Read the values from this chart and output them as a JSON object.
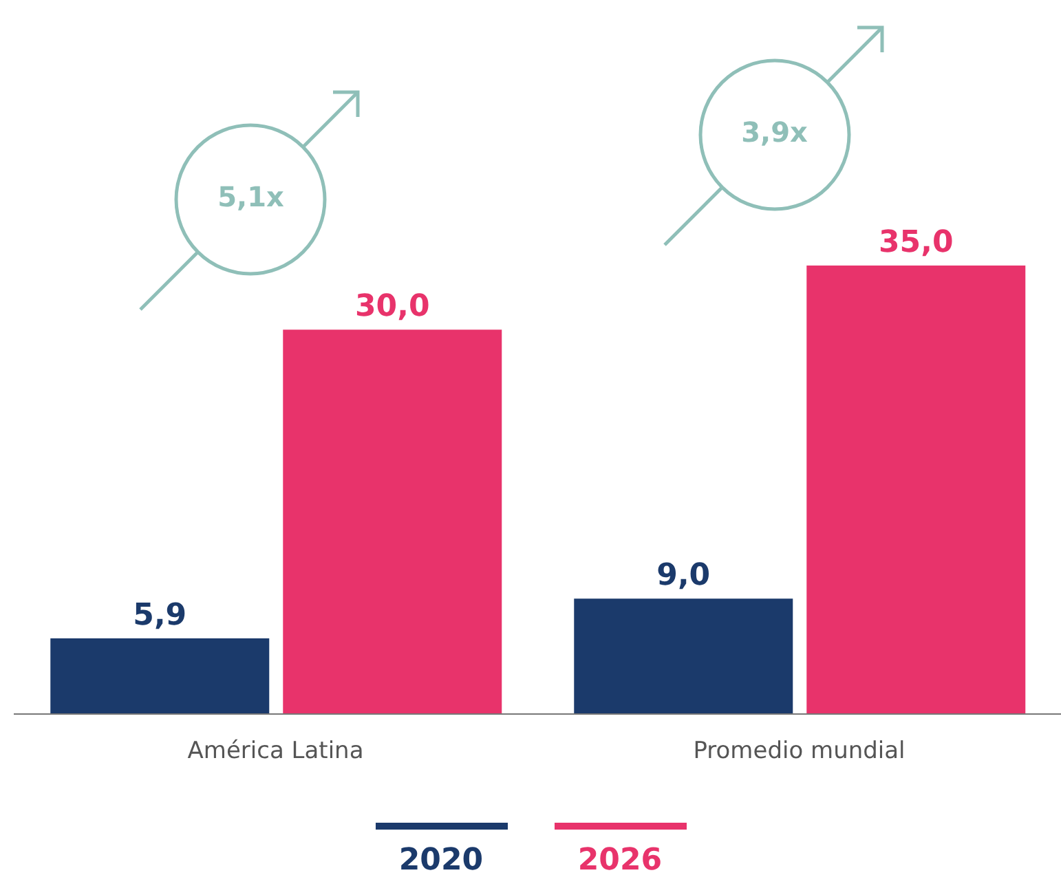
{
  "chart_data": {
    "type": "bar",
    "categories": [
      "América Latina",
      "Promedio mundial"
    ],
    "series": [
      {
        "name": "2020",
        "color": "#1b3a6b",
        "values": [
          5.9,
          9.0
        ],
        "value_labels": [
          "5,9",
          "9,0"
        ]
      },
      {
        "name": "2026",
        "color": "#e8336b",
        "values": [
          30.0,
          35.0
        ],
        "value_labels": [
          "30,0",
          "35,0"
        ]
      }
    ],
    "annotations": [
      "5,1x",
      "3,9x"
    ],
    "legend": "bottom"
  }
}
